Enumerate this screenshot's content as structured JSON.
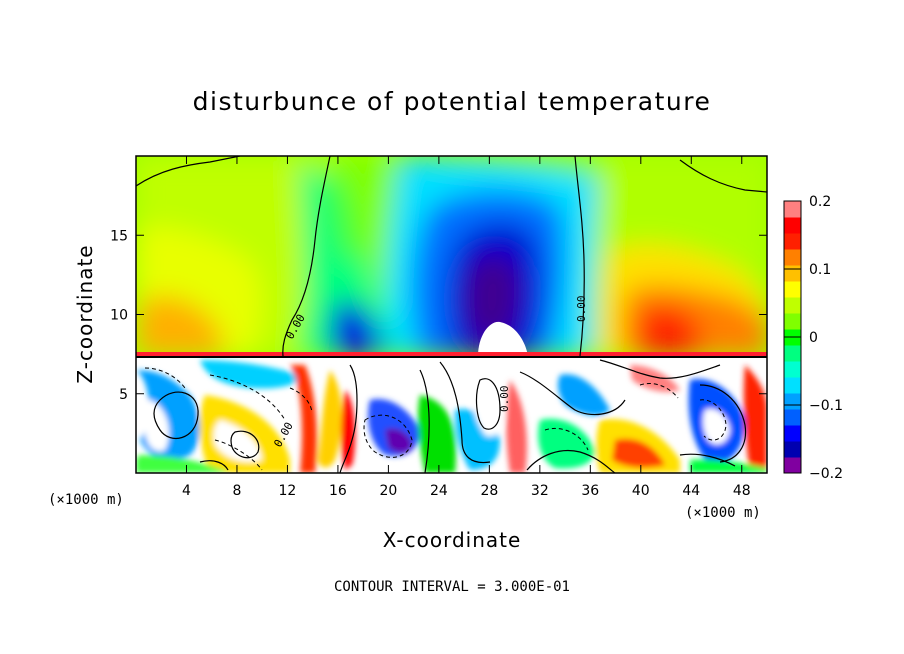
{
  "chart_data": {
    "type": "heatmap",
    "title": "disturbunce of potential temperature",
    "xlabel": "X-coordinate",
    "ylabel": "Z-coordinate",
    "x_unit": "(×1000 m)",
    "xlim": [
      0,
      50
    ],
    "ylim": [
      0,
      20
    ],
    "x_ticks": [
      4,
      8,
      12,
      16,
      20,
      24,
      28,
      32,
      36,
      40,
      44,
      48
    ],
    "y_ticks": [
      5,
      10,
      15
    ],
    "contour_interval_text": "CONTOUR INTERVAL = 3.000E-01",
    "colorbar": {
      "min": -0.2,
      "max": 0.2,
      "tick_labels": [
        "0.2",
        "0.1",
        "0",
        "−0.1",
        "−0.2"
      ],
      "tick_values": [
        0.2,
        0.1,
        0,
        -0.1,
        -0.2
      ],
      "colors": [
        "#8000a0",
        "#0000b0",
        "#0000ff",
        "#0060ff",
        "#00a0ff",
        "#00e0ff",
        "#00ffd0",
        "#00ff80",
        "#00ff00",
        "#80ff00",
        "#c0ff00",
        "#ffff00",
        "#ffc000",
        "#ff8000",
        "#ff2000",
        "#ff0000",
        "#ff8080"
      ]
    },
    "contour_labels": [
      "0.00",
      "0.00",
      "0.00",
      "0.00"
    ],
    "features_upper": [
      {
        "x": 29,
        "z": 13,
        "value": -0.18
      },
      {
        "x": 18,
        "z": 8.5,
        "value": -0.15
      },
      {
        "x": 22,
        "z": 16,
        "value": -0.05
      },
      {
        "x": 3,
        "z": 9,
        "value": 0.11
      },
      {
        "x": 42,
        "z": 10.5,
        "value": 0.15
      },
      {
        "x": 47,
        "z": 9.5,
        "value": 0.13
      },
      {
        "x": 8,
        "z": 15,
        "value": 0.07
      },
      {
        "x": 40,
        "z": 16,
        "value": 0.05
      }
    ]
  }
}
